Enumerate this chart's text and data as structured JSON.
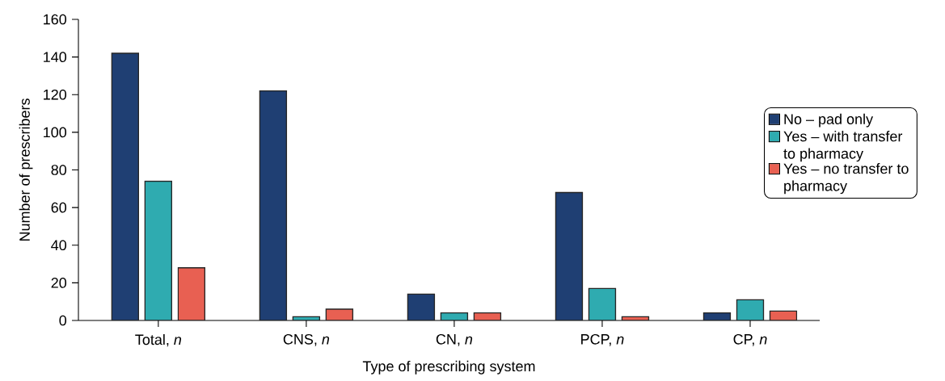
{
  "chart_data": {
    "type": "bar",
    "xlabel": "Type of prescribing system",
    "ylabel": "Number of prescribers",
    "categories": [
      "Total, *n*",
      "CNS, *n*",
      "CN, *n*",
      "PCP, *n*",
      "CP, *n*"
    ],
    "series": [
      {
        "name": "No – pad only",
        "color": "#1f3f73",
        "values": [
          142,
          122,
          14,
          68,
          4
        ]
      },
      {
        "name": "Yes – with transfer to pharmacy",
        "color": "#2fabb0",
        "values": [
          74,
          2,
          4,
          17,
          11
        ]
      },
      {
        "name": "Yes – no transfer to pharmacy",
        "color": "#e86052",
        "values": [
          28,
          6,
          4,
          2,
          5
        ]
      }
    ],
    "ylim": [
      0,
      160
    ],
    "yticks": [
      0,
      20,
      40,
      60,
      80,
      100,
      120,
      140,
      160
    ],
    "grid": false,
    "legend": "right"
  }
}
